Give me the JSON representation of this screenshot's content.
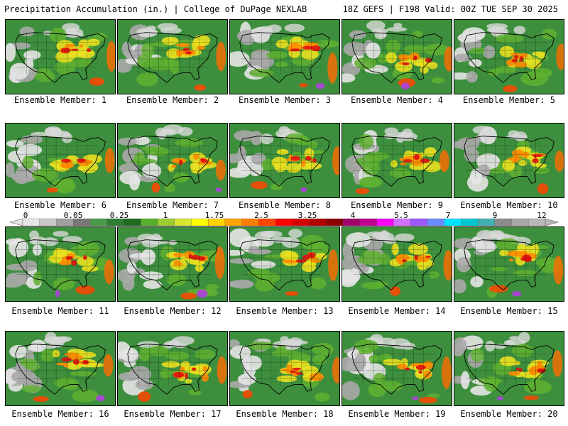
{
  "header": {
    "left_title": "Precipitation Accumulation (in.) | College of DuPage NEXLAB",
    "right_title": "18Z GEFS | F198 Valid: 00Z TUE SEP 30 2025"
  },
  "members": [
    {
      "label": "Ensemble Member: 1"
    },
    {
      "label": "Ensemble Member: 2"
    },
    {
      "label": "Ensemble Member: 3"
    },
    {
      "label": "Ensemble Member: 4"
    },
    {
      "label": "Ensemble Member: 5"
    },
    {
      "label": "Ensemble Member: 6"
    },
    {
      "label": "Ensemble Member: 7"
    },
    {
      "label": "Ensemble Member: 8"
    },
    {
      "label": "Ensemble Member: 9"
    },
    {
      "label": "Ensemble Member: 10"
    },
    {
      "label": "Ensemble Member: 11"
    },
    {
      "label": "Ensemble Member: 12"
    },
    {
      "label": "Ensemble Member: 13"
    },
    {
      "label": "Ensemble Member: 14"
    },
    {
      "label": "Ensemble Member: 15"
    },
    {
      "label": "Ensemble Member: 16"
    },
    {
      "label": "Ensemble Member: 17"
    },
    {
      "label": "Ensemble Member: 18"
    },
    {
      "label": "Ensemble Member: 19"
    },
    {
      "label": "Ensemble Member: 20"
    }
  ],
  "colorbar": {
    "tick_labels": [
      "0",
      "0.05",
      "0.25",
      "1",
      "1.75",
      "2.5",
      "3.25",
      "4",
      "5.5",
      "7",
      "9",
      "12"
    ],
    "colors": [
      "#e6e6e6",
      "#c8c8c8",
      "#a0a0a0",
      "#787878",
      "#4a9a4a",
      "#2e7d32",
      "#1e6b1e",
      "#55b02a",
      "#9acd32",
      "#d8e830",
      "#ffff00",
      "#ffd400",
      "#ffa500",
      "#ff7f00",
      "#ff4500",
      "#ff0000",
      "#d60000",
      "#b00000",
      "#8b0000",
      "#a0006a",
      "#c0008c",
      "#ff00ff",
      "#d070ff",
      "#9b59ff",
      "#6a8cff",
      "#00e5ff",
      "#00c8d0",
      "#40b0b0",
      "#8c8c8c",
      "#a8a8a8",
      "#b8b8b8"
    ]
  }
}
